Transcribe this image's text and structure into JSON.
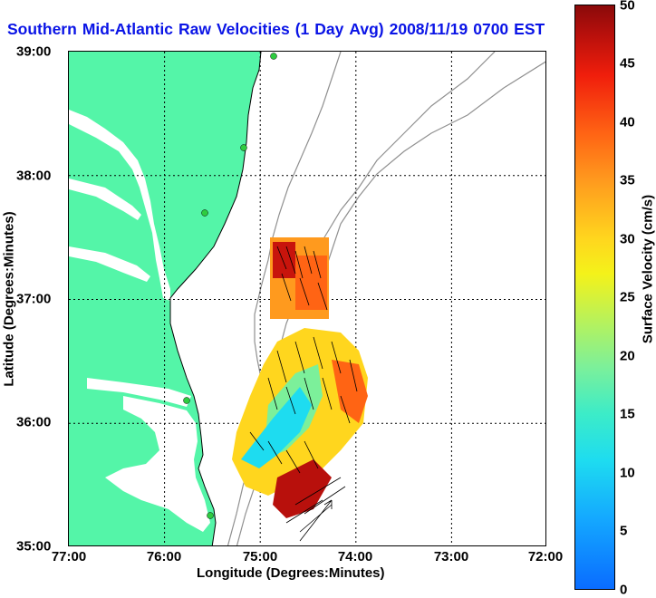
{
  "title": {
    "words": [
      "Southern",
      "Mid-Atlantic",
      "Raw",
      "Velocities",
      "(1",
      "Day",
      "Avg)",
      "2008/11/19",
      "0700",
      "EST"
    ]
  },
  "axes": {
    "xlabel": "Longitude (Degrees:Minutes)",
    "ylabel": "Latitude (Degrees:Minutes)",
    "xticks": [
      "77:00",
      "76:00",
      "75:00",
      "74:00",
      "73:00",
      "72:00"
    ],
    "yticks": [
      "39:00",
      "38:00",
      "37:00",
      "36:00",
      "35:00"
    ]
  },
  "colorbar": {
    "label": "Surface Velocity (cm/s)",
    "ticks": [
      "50",
      "45",
      "40",
      "35",
      "30",
      "25",
      "20",
      "15",
      "10",
      "5",
      "0"
    ]
  },
  "colors": {
    "title": "#0a14e6",
    "land": "#54f5a8",
    "bathymetry": "#909090"
  }
}
